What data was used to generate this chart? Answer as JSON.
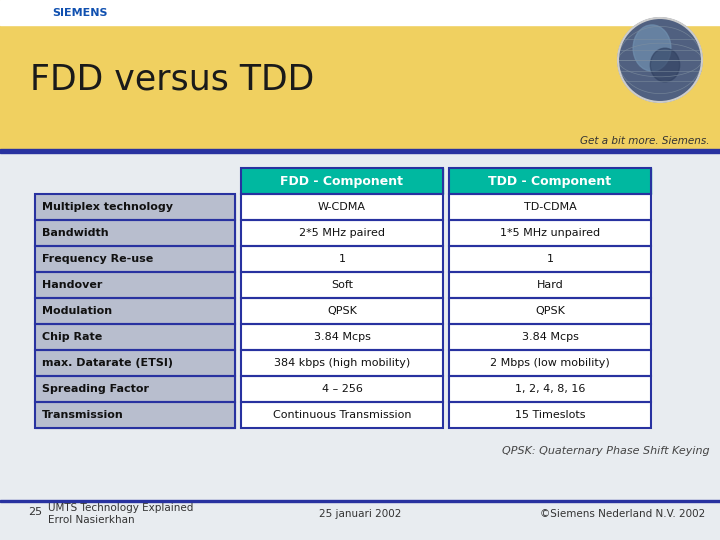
{
  "title": "FDD versus TDD",
  "tagline": "Get a bit more. Siemens.",
  "siemens_text": "SIEMENS",
  "header_fdd": "FDD - Component",
  "header_tdd": "TDD - Component",
  "rows": [
    {
      "label": "Multiplex technology",
      "fdd": "W-CDMA",
      "tdd": "TD-CDMA"
    },
    {
      "label": "Bandwidth",
      "fdd": "2*5 MHz paired",
      "tdd": "1*5 MHz unpaired"
    },
    {
      "label": "Frequency Re-use",
      "fdd": "1",
      "tdd": "1"
    },
    {
      "label": "Handover",
      "fdd": "Soft",
      "tdd": "Hard"
    },
    {
      "label": "Modulation",
      "fdd": "QPSK",
      "tdd": "QPSK"
    },
    {
      "label": "Chip Rate",
      "fdd": "3.84 Mcps",
      "tdd": "3.84 Mcps"
    },
    {
      "label": "max. Datarate (ETSI)",
      "fdd": "384 kbps (high mobility)",
      "tdd": "2 Mbps (low mobility)"
    },
    {
      "label": "Spreading Factor",
      "fdd": "4 – 256",
      "tdd": "1, 2, 4, 8, 16"
    },
    {
      "label": "Transmission",
      "fdd": "Continuous Transmission",
      "tdd": "15 Timeslots"
    }
  ],
  "footer_left_num": "25",
  "footer_left_text": "UMTS Technology Explained\nErrol Nasierkhan",
  "footer_center": "25 januari 2002",
  "footer_right": "©Siemens Nederland N.V. 2002",
  "qpsk_note": "QPSK: Quaternary Phase Shift Keying",
  "bg_color": "#e8ecf0",
  "header_bg": "#f0d060",
  "fdd_header_bg": "#00b8a0",
  "tdd_header_bg": "#00b8a0",
  "label_bg": "#b8bece",
  "label_border": "#2832a0",
  "cell_bg": "#ffffff",
  "cell_border": "#2832a0",
  "siemens_color": "#1050b0",
  "footer_line_color": "#2832a0",
  "header_line_color": "#2832a0",
  "title_color": "#1a1a1a",
  "tagline_color": "#333333"
}
